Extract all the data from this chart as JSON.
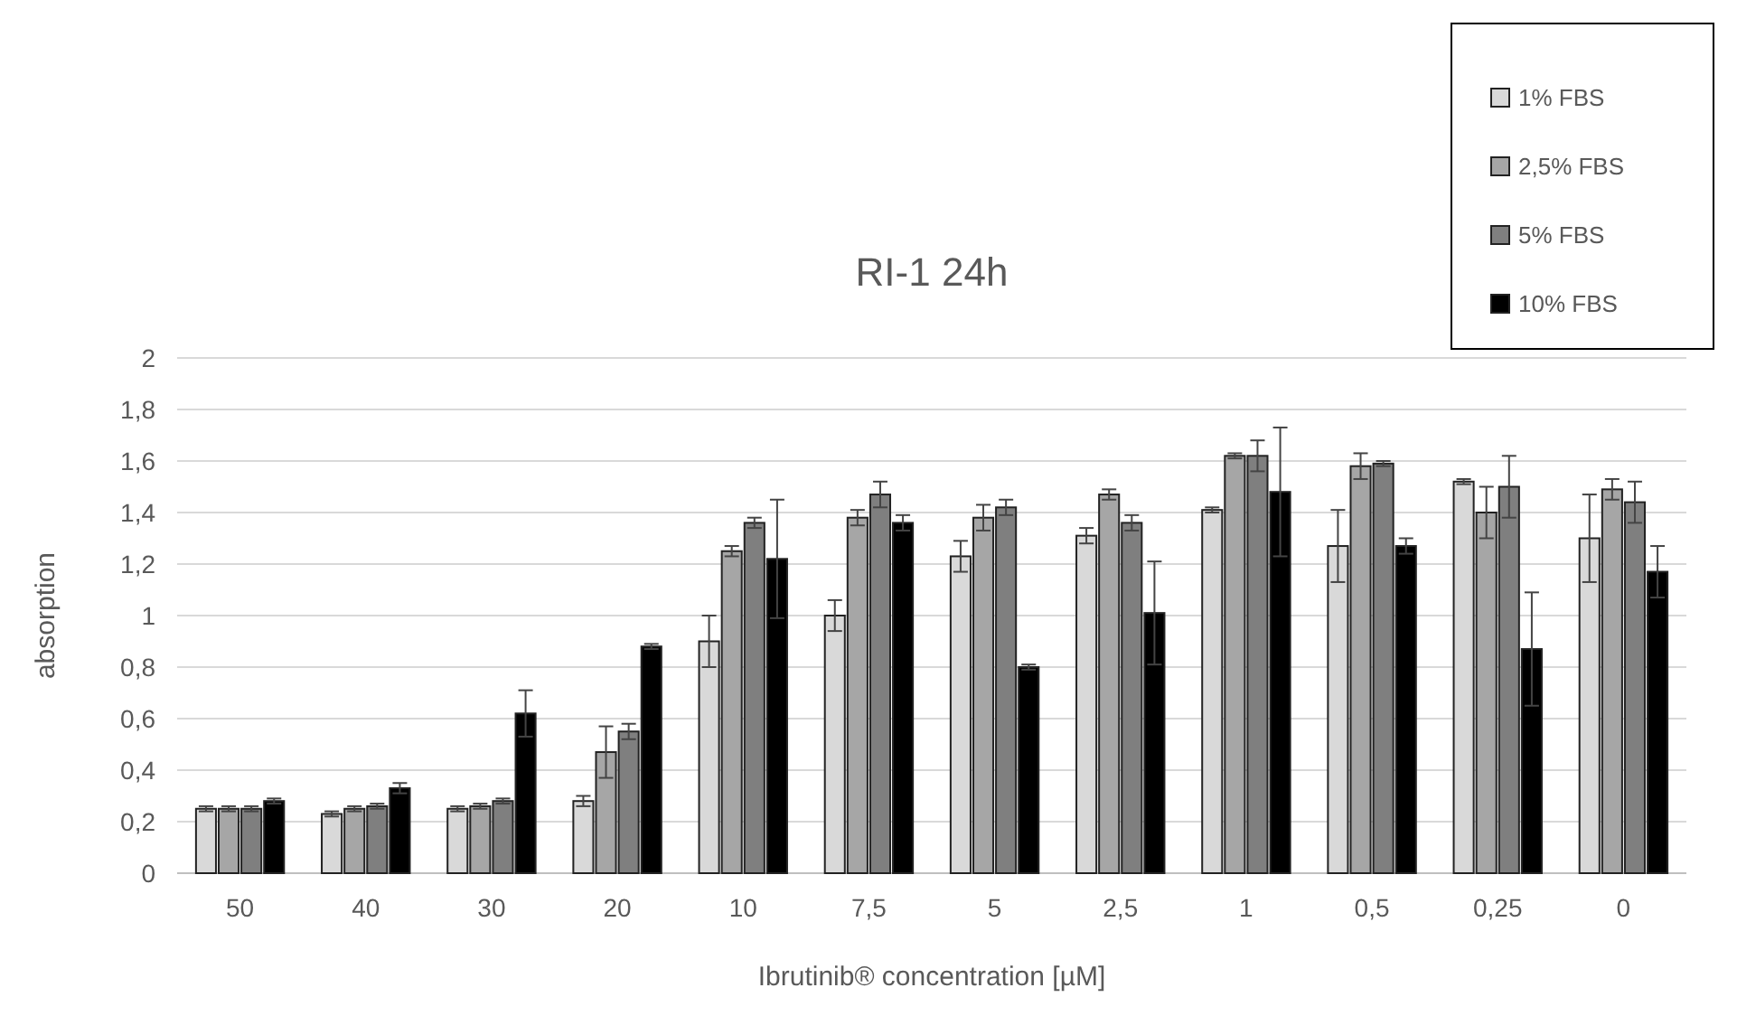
{
  "chart_data": {
    "type": "bar",
    "title": "RI-1 24h",
    "xlabel": "Ibrutinib® concentration [µM]",
    "ylabel": "absorption",
    "categories": [
      "50",
      "40",
      "30",
      "20",
      "10",
      "7,5",
      "5",
      "2,5",
      "1",
      "0,5",
      "0,25",
      "0"
    ],
    "series": [
      {
        "name": "1% FBS",
        "color": "#d9d9d9",
        "values": [
          0.25,
          0.23,
          0.25,
          0.28,
          0.9,
          1.0,
          1.23,
          1.31,
          1.41,
          1.27,
          1.52,
          1.3
        ],
        "errors": [
          0.01,
          0.01,
          0.01,
          0.02,
          0.1,
          0.06,
          0.06,
          0.03,
          0.01,
          0.14,
          0.01,
          0.17
        ]
      },
      {
        "name": "2,5% FBS",
        "color": "#a6a6a6",
        "values": [
          0.25,
          0.25,
          0.26,
          0.47,
          1.25,
          1.38,
          1.38,
          1.47,
          1.62,
          1.58,
          1.4,
          1.49
        ],
        "errors": [
          0.01,
          0.01,
          0.01,
          0.1,
          0.02,
          0.03,
          0.05,
          0.02,
          0.01,
          0.05,
          0.1,
          0.04
        ]
      },
      {
        "name": "5% FBS",
        "color": "#7f7f7f",
        "values": [
          0.25,
          0.26,
          0.28,
          0.55,
          1.36,
          1.47,
          1.42,
          1.36,
          1.62,
          1.59,
          1.5,
          1.44
        ],
        "errors": [
          0.01,
          0.01,
          0.01,
          0.03,
          0.02,
          0.05,
          0.03,
          0.03,
          0.06,
          0.01,
          0.12,
          0.08
        ]
      },
      {
        "name": "10% FBS",
        "color": "#000000",
        "values": [
          0.28,
          0.33,
          0.62,
          0.88,
          1.22,
          1.36,
          0.8,
          1.01,
          1.48,
          1.27,
          0.87,
          1.17
        ],
        "errors": [
          0.01,
          0.02,
          0.09,
          0.01,
          0.23,
          0.03,
          0.01,
          0.2,
          0.25,
          0.03,
          0.22,
          0.1
        ]
      }
    ],
    "ylim": [
      0,
      2
    ],
    "yticks": [
      0,
      {
        "value": 0.2,
        "label": "0,2"
      },
      {
        "value": 0.4,
        "label": "0,4"
      },
      {
        "value": 0.6,
        "label": "0,6"
      },
      {
        "value": 0.8,
        "label": "0,8"
      },
      1,
      {
        "value": 1.2,
        "label": "1,2"
      },
      {
        "value": 1.4,
        "label": "1,4"
      },
      {
        "value": 1.6,
        "label": "1,6"
      },
      {
        "value": 1.8,
        "label": "1,8"
      },
      2
    ],
    "grid": "y",
    "legend": "top right"
  }
}
